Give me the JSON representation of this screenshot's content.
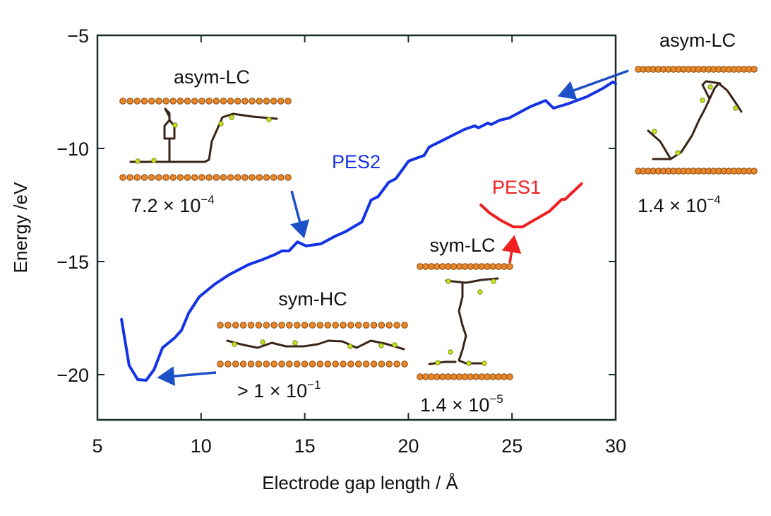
{
  "chart_data": {
    "type": "line",
    "title": "",
    "xlabel": "Electrode gap length / Å",
    "ylabel": "Energy /eV",
    "xlim": [
      5,
      30
    ],
    "ylim": [
      -22,
      -5
    ],
    "xticks": [
      5,
      10,
      15,
      20,
      25,
      30
    ],
    "xtick_labels": [
      "5",
      "10",
      "15",
      "20",
      "25",
      "30"
    ],
    "yticks": [
      -5,
      -10,
      -15,
      -20
    ],
    "ytick_labels": [
      "−5",
      "−10",
      "−15",
      "−20"
    ],
    "grid": false,
    "series": [
      {
        "name": "PES2",
        "color": "#1432e6",
        "x": [
          6.16,
          6.53,
          6.94,
          7.35,
          7.73,
          8.14,
          8.72,
          9.06,
          9.4,
          9.91,
          10.66,
          11.34,
          12.3,
          12.98,
          13.56,
          13.9,
          14.24,
          14.65,
          15.06,
          15.78,
          16.46,
          16.94,
          17.76,
          18.2,
          18.54,
          19.05,
          19.39,
          20.01,
          20.76,
          21.0,
          21.68,
          22.7,
          23.21,
          23.38,
          23.83,
          24.0,
          24.41,
          24.85,
          25.87,
          26.62,
          27.0,
          27.68,
          28.6,
          29.39,
          29.86,
          30.0
        ],
        "y": [
          -17.56,
          -19.59,
          -20.22,
          -20.25,
          -19.78,
          -18.81,
          -18.38,
          -18.03,
          -17.28,
          -16.56,
          -16.0,
          -15.59,
          -15.13,
          -14.91,
          -14.69,
          -14.53,
          -14.53,
          -14.13,
          -14.31,
          -14.22,
          -13.88,
          -13.69,
          -13.25,
          -12.28,
          -12.13,
          -11.5,
          -11.34,
          -10.56,
          -10.31,
          -9.94,
          -9.63,
          -9.16,
          -9.0,
          -9.09,
          -8.88,
          -8.94,
          -8.75,
          -8.66,
          -8.16,
          -7.88,
          -8.22,
          -8.03,
          -7.72,
          -7.34,
          -7.06,
          -7.13
        ]
      },
      {
        "name": "PES1",
        "color": "#f01e1e",
        "x": [
          23.5,
          23.9,
          24.5,
          25.07,
          25.5,
          26.2,
          26.8,
          27.4,
          27.56,
          28.35
        ],
        "y": [
          -12.5,
          -12.84,
          -13.2,
          -13.47,
          -13.47,
          -13.1,
          -12.78,
          -12.25,
          -12.25,
          -11.56
        ]
      }
    ],
    "annotations": [
      {
        "id": "pes2",
        "text": "PES2",
        "color": "#1432e6"
      },
      {
        "id": "pes1",
        "text": "PES1",
        "color": "#f01e1e"
      },
      {
        "id": "inset-asym-lc-left",
        "title": "asym-LC",
        "value_base": "7.2 × 10",
        "value_exp": "−4"
      },
      {
        "id": "inset-asym-lc-right",
        "title": "asym-LC",
        "value_base": "1.4 × 10",
        "value_exp": "−4"
      },
      {
        "id": "inset-sym-hc",
        "title": "sym-HC",
        "value_base": "> 1 × 10",
        "value_exp": "−1"
      },
      {
        "id": "inset-sym-lc",
        "title": "sym-LC",
        "value_base": "1.4 × 10",
        "value_exp": "−5"
      }
    ],
    "arrows": [
      {
        "from_inset": "inset-asym-lc-left",
        "to": [
          15.0,
          -14.2
        ],
        "color": "#1e50c8"
      },
      {
        "from_inset": "inset-asym-lc-right",
        "to": [
          26.6,
          -8.0
        ],
        "color": "#1e50c8"
      },
      {
        "from_inset": "inset-sym-hc",
        "to": [
          7.8,
          -20.3
        ],
        "color": "#1e50c8"
      },
      {
        "from_inset": "inset-sym-lc",
        "to": [
          25.1,
          -13.6
        ],
        "color": "#f01e1e"
      }
    ]
  },
  "colors": {
    "electrode": "#e8862a",
    "electrode_edge": "#8a4a10",
    "axis": "#1a2a2a"
  }
}
